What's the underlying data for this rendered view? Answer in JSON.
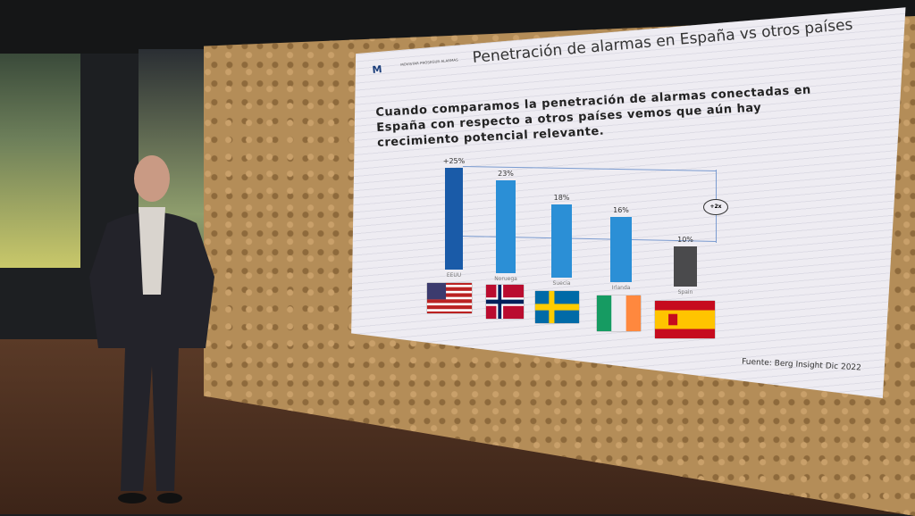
{
  "slide": {
    "title": "Penetración de alarmas en España vs otros países",
    "logo": {
      "mark": "M",
      "text": "MOVISTAR PROSEGUR ALARMAS"
    },
    "intro": [
      "Cuando comparamos la penetración de alarmas conectadas en",
      "España con respecto a otros países vemos que aún hay",
      "crecimiento potencial relevante."
    ],
    "badge": "+2x",
    "source": "Fuente: Berg Insight Dic 2022"
  },
  "chart_data": {
    "type": "bar",
    "categories": [
      "EEUU",
      "Noruega",
      "Suecia",
      "Irlanda",
      "Spain"
    ],
    "values": [
      25,
      23,
      18,
      16,
      10
    ],
    "value_labels": [
      "+25%",
      "23%",
      "18%",
      "16%",
      "10%"
    ],
    "colors": [
      "#1a5ba8",
      "#2b8fd6",
      "#2b8fd6",
      "#2b8fd6",
      "#4a4a4c"
    ],
    "flags": [
      "us-flag",
      "norway-flag",
      "sweden-flag",
      "ireland-flag",
      "spain-flag"
    ]
  }
}
